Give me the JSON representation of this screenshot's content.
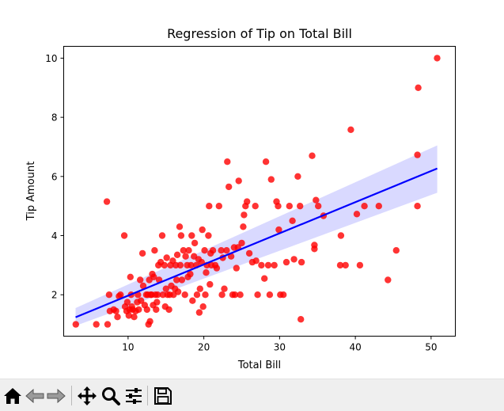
{
  "chart_data": {
    "type": "scatter",
    "title": "Regression of Tip on Total Bill",
    "xlabel": "Total Bill",
    "ylabel": "Tip Amount",
    "xlim": [
      1.5,
      53.2
    ],
    "ylim": [
      0.6,
      10.4
    ],
    "xticks": [
      "10",
      "20",
      "30",
      "40",
      "50"
    ],
    "yticks": [
      "2",
      "4",
      "6",
      "8",
      "10"
    ],
    "grid": false,
    "colors": {
      "points": "#ff0000",
      "line": "#0000ff",
      "band": "#ccccff"
    },
    "regression": {
      "x": [
        3.07,
        50.81
      ],
      "y": [
        1.24,
        6.27
      ],
      "ci_lower": [
        0.95,
        5.45
      ],
      "ci_upper": [
        1.55,
        7.05
      ]
    },
    "points": [
      [
        3.1,
        1.0
      ],
      [
        5.8,
        1.0
      ],
      [
        7.3,
        1.0
      ],
      [
        7.2,
        5.15
      ],
      [
        7.5,
        2.0
      ],
      [
        7.6,
        1.45
      ],
      [
        8.1,
        1.5
      ],
      [
        8.4,
        1.45
      ],
      [
        8.6,
        1.25
      ],
      [
        8.8,
        1.95
      ],
      [
        9.0,
        2.0
      ],
      [
        9.5,
        4.0
      ],
      [
        9.6,
        1.6
      ],
      [
        9.8,
        1.45
      ],
      [
        9.9,
        1.75
      ],
      [
        10.1,
        1.3
      ],
      [
        10.2,
        1.5
      ],
      [
        10.3,
        2.6
      ],
      [
        10.4,
        2.0
      ],
      [
        10.5,
        1.6
      ],
      [
        10.6,
        1.5
      ],
      [
        10.8,
        1.25
      ],
      [
        11.0,
        1.45
      ],
      [
        11.2,
        1.75
      ],
      [
        11.3,
        2.0
      ],
      [
        11.4,
        1.5
      ],
      [
        11.6,
        2.5
      ],
      [
        11.7,
        1.8
      ],
      [
        11.9,
        3.4
      ],
      [
        12.0,
        2.3
      ],
      [
        12.2,
        1.65
      ],
      [
        12.4,
        2.0
      ],
      [
        12.5,
        1.5
      ],
      [
        12.6,
        2.0
      ],
      [
        12.7,
        1.0
      ],
      [
        12.8,
        2.5
      ],
      [
        12.9,
        1.1
      ],
      [
        13.0,
        2.0
      ],
      [
        13.1,
        2.0
      ],
      [
        13.2,
        2.7
      ],
      [
        13.3,
        1.65
      ],
      [
        13.4,
        2.6
      ],
      [
        13.5,
        3.5
      ],
      [
        13.6,
        2.0
      ],
      [
        13.7,
        1.5
      ],
      [
        13.8,
        1.75
      ],
      [
        13.9,
        2.0
      ],
      [
        14.0,
        3.0
      ],
      [
        14.1,
        2.5
      ],
      [
        14.3,
        3.1
      ],
      [
        14.5,
        4.0
      ],
      [
        14.6,
        2.0
      ],
      [
        14.8,
        3.0
      ],
      [
        14.9,
        1.6
      ],
      [
        15.0,
        2.2
      ],
      [
        15.1,
        3.25
      ],
      [
        15.2,
        2.0
      ],
      [
        15.4,
        1.5
      ],
      [
        15.5,
        2.0
      ],
      [
        15.6,
        3.0
      ],
      [
        15.7,
        2.3
      ],
      [
        15.9,
        3.15
      ],
      [
        16.0,
        2.0
      ],
      [
        16.2,
        2.2
      ],
      [
        16.3,
        3.0
      ],
      [
        16.4,
        2.5
      ],
      [
        16.5,
        3.35
      ],
      [
        16.6,
        2.1
      ],
      [
        16.8,
        4.3
      ],
      [
        16.9,
        3.0
      ],
      [
        17.0,
        4.0
      ],
      [
        17.1,
        2.5
      ],
      [
        17.3,
        3.5
      ],
      [
        17.5,
        2.0
      ],
      [
        17.6,
        3.3
      ],
      [
        17.8,
        3.0
      ],
      [
        17.9,
        2.6
      ],
      [
        18.0,
        3.5
      ],
      [
        18.2,
        2.7
      ],
      [
        18.3,
        3.0
      ],
      [
        18.4,
        4.0
      ],
      [
        18.5,
        1.8
      ],
      [
        18.7,
        3.3
      ],
      [
        18.8,
        3.75
      ],
      [
        19.0,
        3.0
      ],
      [
        19.1,
        2.0
      ],
      [
        19.3,
        3.2
      ],
      [
        19.4,
        1.4
      ],
      [
        19.5,
        2.2
      ],
      [
        19.7,
        3.1
      ],
      [
        19.8,
        4.2
      ],
      [
        19.9,
        1.6
      ],
      [
        20.1,
        3.5
      ],
      [
        20.2,
        2.0
      ],
      [
        20.3,
        2.75
      ],
      [
        20.4,
        3.0
      ],
      [
        20.6,
        4.0
      ],
      [
        20.7,
        5.0
      ],
      [
        20.8,
        2.35
      ],
      [
        20.9,
        3.4
      ],
      [
        21.0,
        3.0
      ],
      [
        21.2,
        3.5
      ],
      [
        21.5,
        3.0
      ],
      [
        21.7,
        2.9
      ],
      [
        22.0,
        5.0
      ],
      [
        22.3,
        3.5
      ],
      [
        22.4,
        2.0
      ],
      [
        22.5,
        3.25
      ],
      [
        22.7,
        2.2
      ],
      [
        23.0,
        3.5
      ],
      [
        23.1,
        6.5
      ],
      [
        23.3,
        5.65
      ],
      [
        23.6,
        3.3
      ],
      [
        23.8,
        2.0
      ],
      [
        24.0,
        3.6
      ],
      [
        24.1,
        2.0
      ],
      [
        24.3,
        2.9
      ],
      [
        24.5,
        3.6
      ],
      [
        24.6,
        5.85
      ],
      [
        24.8,
        2.0
      ],
      [
        25.0,
        3.75
      ],
      [
        25.2,
        4.3
      ],
      [
        25.3,
        4.7
      ],
      [
        25.5,
        5.0
      ],
      [
        25.7,
        5.15
      ],
      [
        26.0,
        3.4
      ],
      [
        26.4,
        3.1
      ],
      [
        26.8,
        5.0
      ],
      [
        26.9,
        3.15
      ],
      [
        27.1,
        2.0
      ],
      [
        27.6,
        3.0
      ],
      [
        28.0,
        2.55
      ],
      [
        28.2,
        6.5
      ],
      [
        28.5,
        3.0
      ],
      [
        28.7,
        2.0
      ],
      [
        28.9,
        5.9
      ],
      [
        29.3,
        3.0
      ],
      [
        29.6,
        5.15
      ],
      [
        29.8,
        5.0
      ],
      [
        29.9,
        4.2
      ],
      [
        30.1,
        2.0
      ],
      [
        30.5,
        2.0
      ],
      [
        30.9,
        3.1
      ],
      [
        31.3,
        5.0
      ],
      [
        31.7,
        4.5
      ],
      [
        31.9,
        3.2
      ],
      [
        32.4,
        6.0
      ],
      [
        32.7,
        5.0
      ],
      [
        32.8,
        1.17
      ],
      [
        32.9,
        3.1
      ],
      [
        34.3,
        6.7
      ],
      [
        34.6,
        3.55
      ],
      [
        34.6,
        3.68
      ],
      [
        34.8,
        5.2
      ],
      [
        35.1,
        5.0
      ],
      [
        35.8,
        4.67
      ],
      [
        38.0,
        3.0
      ],
      [
        38.1,
        4.0
      ],
      [
        38.7,
        3.0
      ],
      [
        39.4,
        7.58
      ],
      [
        40.2,
        4.73
      ],
      [
        40.6,
        3.0
      ],
      [
        41.2,
        5.0
      ],
      [
        43.1,
        5.0
      ],
      [
        44.3,
        2.5
      ],
      [
        45.4,
        3.5
      ],
      [
        48.2,
        5.0
      ],
      [
        48.2,
        6.73
      ],
      [
        48.3,
        9.0
      ],
      [
        50.8,
        10.0
      ]
    ]
  },
  "toolbar": {
    "buttons": [
      {
        "name": "home-icon",
        "label": "Home"
      },
      {
        "name": "back-icon",
        "label": "Back"
      },
      {
        "name": "forward-icon",
        "label": "Forward"
      },
      {
        "name": "pan-icon",
        "label": "Pan"
      },
      {
        "name": "zoom-icon",
        "label": "Zoom"
      },
      {
        "name": "configure-icon",
        "label": "Configure subplots"
      },
      {
        "name": "save-icon",
        "label": "Save"
      }
    ]
  }
}
